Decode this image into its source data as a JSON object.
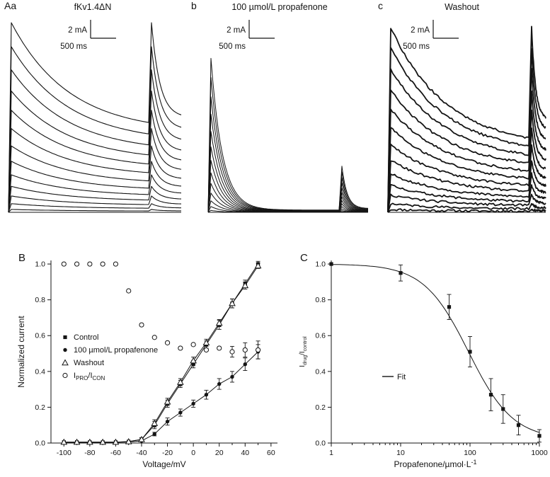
{
  "figure_bg": "#ffffff",
  "ink": "#141414",
  "panels_top": [
    {
      "label": "Aa",
      "title": "fKv1.4ΔN",
      "scale_current": "2 mA",
      "scale_time": "500 ms",
      "trace_peaks": [
        0.015,
        0.045,
        0.085,
        0.135,
        0.195,
        0.265,
        0.345,
        0.435,
        0.53,
        0.63,
        0.74,
        0.86,
        0.985
      ],
      "decay_floor": 0.42,
      "decay_tau": 0.42,
      "tail_start": 1.0,
      "tail_floor": 0.5,
      "tail_tau": 0.28,
      "noise": 0,
      "stroke_width": 1.1,
      "seed": 3
    },
    {
      "label": "b",
      "title": "100 µmol/L propafenone",
      "scale_current": "2 mA",
      "scale_time": "500 ms",
      "trace_peaks": [
        0.01,
        0.03,
        0.06,
        0.1,
        0.15,
        0.205,
        0.27,
        0.34,
        0.42,
        0.51,
        0.6,
        0.7,
        0.8
      ],
      "decay_floor": 0.015,
      "decay_tau": 0.09,
      "tail_start": 0.3,
      "tail_floor": 0.08,
      "tail_tau": 0.2,
      "noise": 0,
      "stroke_width": 1.0,
      "seed": 5
    },
    {
      "label": "c",
      "title": "Washout",
      "scale_current": "2 mA",
      "scale_time": "500 ms",
      "trace_peaks": [
        0.015,
        0.045,
        0.09,
        0.14,
        0.2,
        0.27,
        0.35,
        0.44,
        0.535,
        0.635,
        0.745,
        0.855,
        0.96
      ],
      "decay_floor": 0.35,
      "decay_tau": 0.4,
      "tail_start": 1.0,
      "tail_floor": 0.5,
      "tail_tau": 0.28,
      "noise": 0.012,
      "stroke_width": 1.8,
      "seed": 11
    }
  ],
  "chart_data": [
    {
      "type": "line",
      "panel_label": "B",
      "xlabel": "Voltage/mV",
      "ylabel": "Normalized current",
      "xlim": [
        -110,
        65
      ],
      "ylim": [
        0,
        1.02
      ],
      "x_ticks": [
        -100,
        -80,
        -60,
        -40,
        -20,
        0,
        20,
        40,
        60
      ],
      "y_ticks": [
        0.0,
        0.2,
        0.4,
        0.6,
        0.8,
        1.0
      ],
      "legend_position": "left-middle",
      "x": [
        -100,
        -90,
        -80,
        -70,
        -60,
        -50,
        -40,
        -30,
        -20,
        -10,
        0,
        10,
        20,
        30,
        40,
        50
      ],
      "series": [
        {
          "name": "Control",
          "marker": "filled-square",
          "line": true,
          "values": [
            0.005,
            0.005,
            0.005,
            0.005,
            0.005,
            0.008,
            0.02,
            0.1,
            0.22,
            0.33,
            0.44,
            0.55,
            0.66,
            0.78,
            0.89,
            1.0
          ],
          "errors": [
            0,
            0,
            0,
            0,
            0,
            0,
            0.01,
            0.02,
            0.02,
            0.02,
            0.02,
            0.02,
            0.025,
            0.025,
            0.02,
            0.015
          ]
        },
        {
          "name": "100 µmol/L propafenone",
          "marker": "filled-circle",
          "line": true,
          "values": [
            0.004,
            0.004,
            0.004,
            0.004,
            0.004,
            0.006,
            0.012,
            0.05,
            0.12,
            0.17,
            0.22,
            0.27,
            0.33,
            0.37,
            0.44,
            0.51
          ],
          "errors": [
            0,
            0,
            0,
            0,
            0,
            0,
            0,
            0.01,
            0.02,
            0.02,
            0.02,
            0.025,
            0.03,
            0.03,
            0.035,
            0.04
          ]
        },
        {
          "name": "Washout",
          "marker": "open-triangle",
          "line": true,
          "values": [
            0.005,
            0.005,
            0.005,
            0.005,
            0.005,
            0.008,
            0.02,
            0.11,
            0.23,
            0.34,
            0.46,
            0.56,
            0.67,
            0.78,
            0.88,
            0.99
          ],
          "errors": [
            0,
            0,
            0,
            0,
            0,
            0,
            0.01,
            0.02,
            0.02,
            0.02,
            0.02,
            0.02,
            0.02,
            0.025,
            0.02,
            0.015
          ]
        },
        {
          "name": "IPRO/ICON",
          "marker": "open-circle",
          "line": false,
          "label_parts": [
            {
              "t": "I"
            },
            {
              "t": "PRO",
              "sub": true
            },
            {
              "t": "/I"
            },
            {
              "t": "CON",
              "sub": true
            }
          ],
          "values": [
            1.0,
            1.0,
            1.0,
            1.0,
            1.0,
            0.85,
            0.66,
            0.59,
            0.56,
            0.53,
            0.55,
            0.52,
            0.53,
            0.51,
            0.52,
            0.52
          ],
          "errors": [
            0,
            0,
            0,
            0,
            0,
            0,
            0,
            0,
            0,
            0,
            0,
            0,
            0,
            0.03,
            0.04,
            0.05
          ]
        }
      ]
    },
    {
      "type": "scatter",
      "panel_label": "C",
      "xscale": "log",
      "xlabel_parts": [
        {
          "t": "Propafenone/µmol·L"
        },
        {
          "t": "-1",
          "sup": true
        }
      ],
      "ylabel_parts": [
        {
          "t": "I"
        },
        {
          "t": "drug",
          "sub": true
        },
        {
          "t": "/I"
        },
        {
          "t": "control",
          "sub": true
        }
      ],
      "xlim": [
        1,
        1000
      ],
      "ylim": [
        0,
        1.02
      ],
      "x_ticks": [
        1,
        10,
        100,
        1000
      ],
      "y_ticks": [
        0.0,
        0.2,
        0.4,
        0.6,
        0.8,
        1.0
      ],
      "marker": "filled-square",
      "x": [
        1,
        10,
        50,
        100,
        200,
        300,
        500,
        1000
      ],
      "values": [
        1.0,
        0.95,
        0.76,
        0.51,
        0.27,
        0.19,
        0.1,
        0.04
      ],
      "errors": [
        0,
        0.045,
        0.07,
        0.085,
        0.09,
        0.08,
        0.055,
        0.035
      ],
      "fit": {
        "label": "Fit",
        "model": "hill",
        "top": 1.0,
        "bottom": 0.02,
        "ic50": 95,
        "hill": 1.35
      }
    }
  ]
}
